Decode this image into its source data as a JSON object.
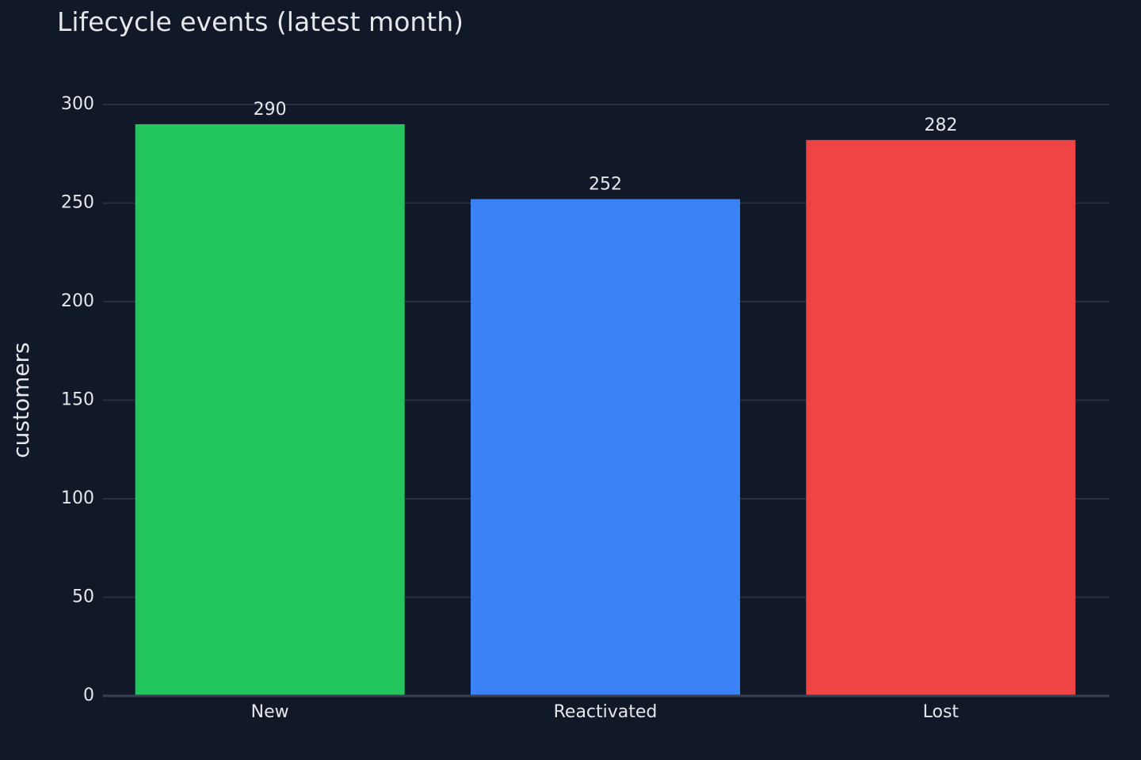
{
  "chart_data": {
    "type": "bar",
    "title": "Lifecycle events (latest month)",
    "xlabel": "",
    "ylabel": "customers",
    "categories": [
      "New",
      "Reactivated",
      "Lost"
    ],
    "values": [
      290,
      252,
      282
    ],
    "bar_colors": [
      "#22c55e",
      "#3b82f6",
      "#ef4444"
    ],
    "ylim": [
      0,
      300
    ],
    "yticks": [
      0,
      50,
      100,
      150,
      200,
      250,
      300
    ],
    "grid": true,
    "data_labels": true
  },
  "theme": {
    "background": "#111827",
    "grid_color": "#263041",
    "axis_color": "#374151",
    "text_color": "#e5e7eb"
  }
}
